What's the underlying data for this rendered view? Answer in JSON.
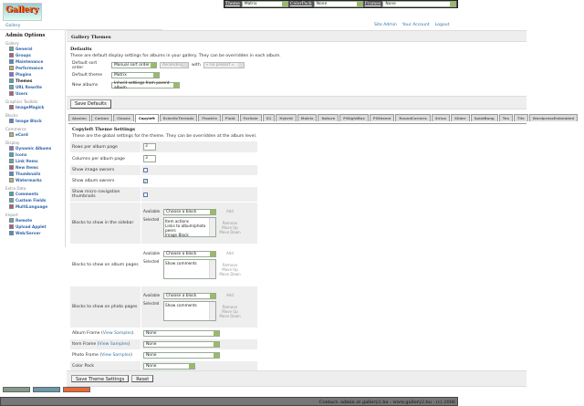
{
  "topbar": {
    "theme_label": "Theme",
    "theme_value": "Matrix",
    "colorpack_label": "ColorPack",
    "colorpack_value": "None",
    "frames_label": "Frames",
    "frames_value": "None"
  },
  "logo": "Gallery",
  "breadcrumb": "Gallery",
  "header_links": [
    "Site Admin",
    "Your Account",
    "Logout"
  ],
  "sidebar": {
    "title": "Admin Options",
    "groups": [
      {
        "name": "Gallery",
        "items": [
          "General",
          "Groups",
          "Maintenance",
          "Performance",
          "Plugins",
          "Themes",
          "URL Rewrite",
          "Users"
        ]
      },
      {
        "name": "Graphics Toolkits",
        "items": [
          "ImageMagick"
        ]
      },
      {
        "name": "Blocks",
        "items": [
          "Image Block"
        ]
      },
      {
        "name": "Commerce",
        "items": [
          "eCard"
        ]
      },
      {
        "name": "Display",
        "items": [
          "Dynamic Albums",
          "Icons",
          "Link Items",
          "New Items",
          "Thumbnails",
          "Watermarks"
        ]
      },
      {
        "name": "Extra Data",
        "items": [
          "Comments",
          "Custom Fields",
          "MultiLanguage"
        ]
      },
      {
        "name": "Import",
        "items": [
          "Remote",
          "Upload Applet",
          "Web/Server"
        ]
      }
    ],
    "current": "Themes"
  },
  "main": {
    "title": "Gallery Themes",
    "defaults_heading": "Defaults",
    "defaults_desc": "These are default display settings for albums in your gallery. They can be overridden in each album.",
    "sort_label": "Default sort order",
    "sort_value": "Manual sort order",
    "sort_dir": "Ascending",
    "with_label": "with",
    "with_value": "« no presort »",
    "theme_label": "Default theme",
    "theme_value": "Matrix",
    "new_albums_label": "New albums",
    "new_albums_value": "Inherit settings from parent album",
    "save_defaults": "Save Defaults"
  },
  "tabs": [
    "Ajaxian",
    "Carbon",
    "Classic",
    "Copyleft",
    "EclecticThreads",
    "Floatrix",
    "Fluid",
    "ForSale",
    "G1",
    "Hybrid",
    "Matrix",
    "Nature",
    "PGlightBox",
    "PGtheme",
    "RoundCorners",
    "Siriux",
    "Slider",
    "SplatBang",
    "Tea",
    "Tile",
    "WordpressEmbedded"
  ],
  "active_tab": "Copyleft",
  "theme_settings": {
    "heading": "Copyleft Theme Settings",
    "desc": "These are the global settings for the theme. They can be overridden at the album level.",
    "rows_label": "Rows per album page",
    "rows_value": "3",
    "cols_label": "Columns per album page",
    "cols_value": "3",
    "image_owners_label": "Show image owners",
    "image_owners": false,
    "album_owners_label": "Show album owners",
    "album_owners": true,
    "micro_label": "Show micro navigation thumbnails",
    "micro": false,
    "available_label": "Available",
    "selected_label": "Selected",
    "choose": "Choose a block",
    "add": "Add",
    "remove": "Remove",
    "move_up": "Move Up",
    "move_down": "Move Down",
    "sidebar_blocks_label": "Blocks to show in the sidebar",
    "sidebar_blocks": [
      "Item actions",
      "Links to album/photo peers",
      "Image Block"
    ],
    "album_blocks_label": "Blocks to show on album pages",
    "album_blocks": [
      "Show comments"
    ],
    "photo_blocks_label": "Blocks to show on photo pages",
    "photo_blocks": [
      "Show comments"
    ],
    "view_samples": "View Samples",
    "album_frame_label": "Album Frame",
    "album_frame": "None",
    "item_frame_label": "Item Frame",
    "item_frame": "None",
    "photo_frame_label": "Photo Frame",
    "photo_frame": "None",
    "color_pack_label": "Color Pack",
    "color_pack": "None",
    "save": "Save Theme Settings",
    "reset": "Reset"
  },
  "badges": [
    "W3C XHTML 1.0",
    "Gallery 2",
    "Gallery"
  ],
  "footer": "Contact: admin at gallery2.hu - www.gallery2.hu - (c) 2006"
}
